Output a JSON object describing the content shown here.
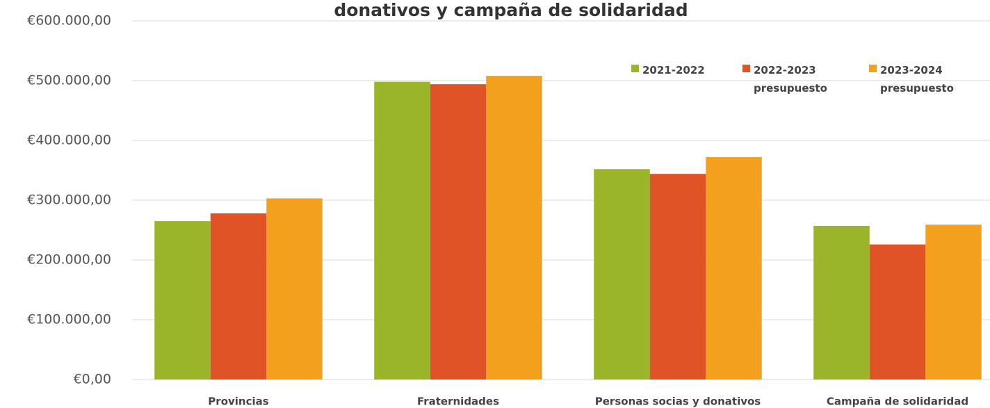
{
  "chart_data": {
    "type": "bar",
    "title": "donativos y campaña de solidaridad",
    "categories": [
      "Provincias",
      "Fraternidades",
      "Personas socias y donativos",
      "Campaña de solidaridad"
    ],
    "series": [
      {
        "name": "2021-2022",
        "color": "#9bb52a",
        "values": [
          265000,
          498000,
          352000,
          257000
        ]
      },
      {
        "name": "2022-2023 presupuesto",
        "color": "#e05327",
        "values": [
          278000,
          494000,
          344000,
          226000
        ]
      },
      {
        "name": "2023-2024 presupuesto",
        "color": "#f4a01f",
        "values": [
          303000,
          508000,
          372000,
          259000
        ]
      }
    ],
    "ylim": [
      0,
      600000
    ],
    "yticks": [
      {
        "value": 0,
        "label": "€0,00"
      },
      {
        "value": 100000,
        "label": "€100.000,00"
      },
      {
        "value": 200000,
        "label": "€200.000,00"
      },
      {
        "value": 300000,
        "label": "€300.000,00"
      },
      {
        "value": 400000,
        "label": "€400.000,00"
      },
      {
        "value": 500000,
        "label": "€500.000,00"
      },
      {
        "value": 600000,
        "label": "€600.000,00"
      }
    ],
    "grid": true,
    "legend": "top-right"
  }
}
